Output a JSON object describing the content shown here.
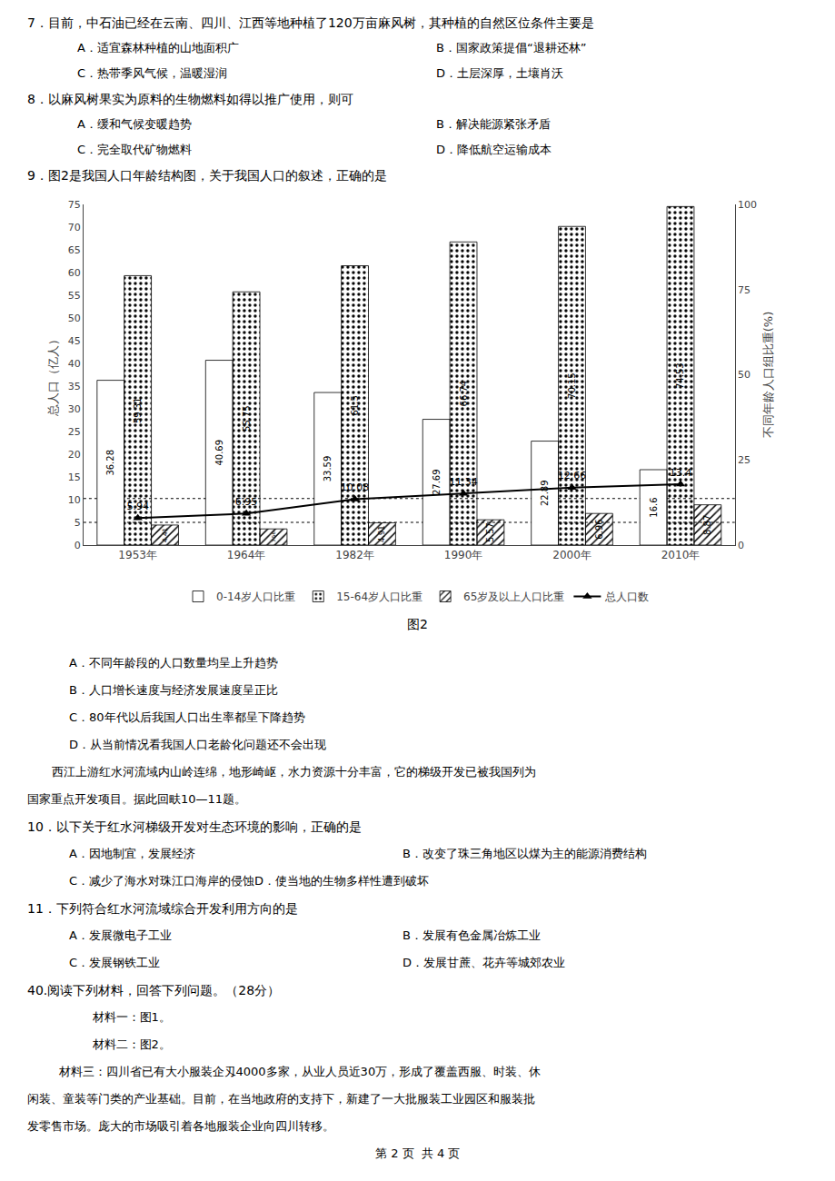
{
  "chart_data": {
    "type": "bar",
    "title": "图2",
    "categories": [
      "1953年",
      "1964年",
      "1982年",
      "1990年",
      "2000年",
      "2010年"
    ],
    "series": [
      {
        "name": "0-14岁人口比重",
        "color": "#ffffff",
        "values": [
          36.28,
          40.69,
          33.59,
          27.69,
          22.89,
          16.6
        ]
      },
      {
        "name": "15-64岁人口比重",
        "color": "#c0c0c0",
        "values": [
          59.31,
          55.75,
          61.5,
          66.74,
          70.15,
          74.53
        ]
      },
      {
        "name": "65岁及以上人口比重",
        "color": "#ffffff",
        "values": [
          4.41,
          3.56,
          4.91,
          5.57,
          6.96,
          8.87
        ]
      },
      {
        "name": "总人口数",
        "type": "line",
        "color": "#000000",
        "marker": "triangle-up",
        "values": [
          5.94,
          6.95,
          10.08,
          11.34,
          12.66,
          13.4
        ]
      }
    ],
    "ylabel": "总人口（亿人）",
    "y2label": "不同年龄人口组比重(%)",
    "ylim": [
      0,
      75
    ],
    "yticks": [
      0,
      5,
      10,
      15,
      20,
      25,
      30,
      35,
      40,
      45,
      50,
      55,
      60,
      65,
      70,
      75
    ],
    "y2lim": [
      0,
      100
    ],
    "y2ticks": [
      0,
      25,
      50,
      75,
      100
    ],
    "hlines": [
      5.0,
      10.25
    ],
    "grid": false,
    "legend": "bottom",
    "data_labels": true,
    "annotations": [
      "7．目前，中石油已经在云南、四川、江西等地种植了120万亩麻风树，其种植的自然区位条件主要是",
      "A．适宜森林种植的山地面积广",
      "B．国家政策提倡“退耕还林”",
      "C．热带季风气候，温暖湿润",
      "D．土层深厚，土壤肖沃",
      "8．以麻风树果实为原料的生物燃料如得以推广使用，则可",
      "A．缓和气候变暖趋势",
      "B．解决能源紧张矛盾",
      "C．完全取代矿物燃料",
      "D．降低航空运输成本",
      "9．图2是我国人口年龄结构图，关于我国人口的叙述，正确的是",
      "A．不同年龄段的人口数量均呈上升趋势",
      "B．人口增长速度与经济发展速度呈正比",
      "C．80年代以后我国人口出生率都呈下降趋势",
      "D．从当前情况看我国人口老龄化问题还不会出现",
      "西江上游红水河流域内山岭连绵，地形崎岖，水力资源十分丰富，它的梯级开发已被我国列为",
      "国家重点开发项目。据此回畉10—11题。",
      "10．以下关于红水河梯级开发对生态环境的影响，正确的是",
      "A．因地制宜，发展经济",
      "B．改变了珠三角地区以煤为主的能源消费结构",
      "C．减少了海水对珠江口海岸的侵蚀D．使当地的生物多样性遭到破坏",
      "11．下列符合红水河流域综合开发利用方向的是",
      "A．发展微电子工业",
      "B．发展有色金属冶炼工业",
      "C．发展钢铁工业",
      "D．发展甘蔗、花卉等城郊农业",
      "40.阅读下列材料，回答下列问题。（28分）",
      "    材料一：图1。",
      "    材料二：图2。",
      "    材料三：四川省已有大小服装企刄4000多家，从业人员近30万，形成了覆盖西服、时装、休",
      "闲装、童装等门类的产业基础。目前，在当地政府的支持下，新建了一大批服装工业园区和服装批",
      "发零售市场。庞大的市场吸引着各地服装企业向四川转移。",
      "第 2 页  共 4 页"
    ]
  }
}
